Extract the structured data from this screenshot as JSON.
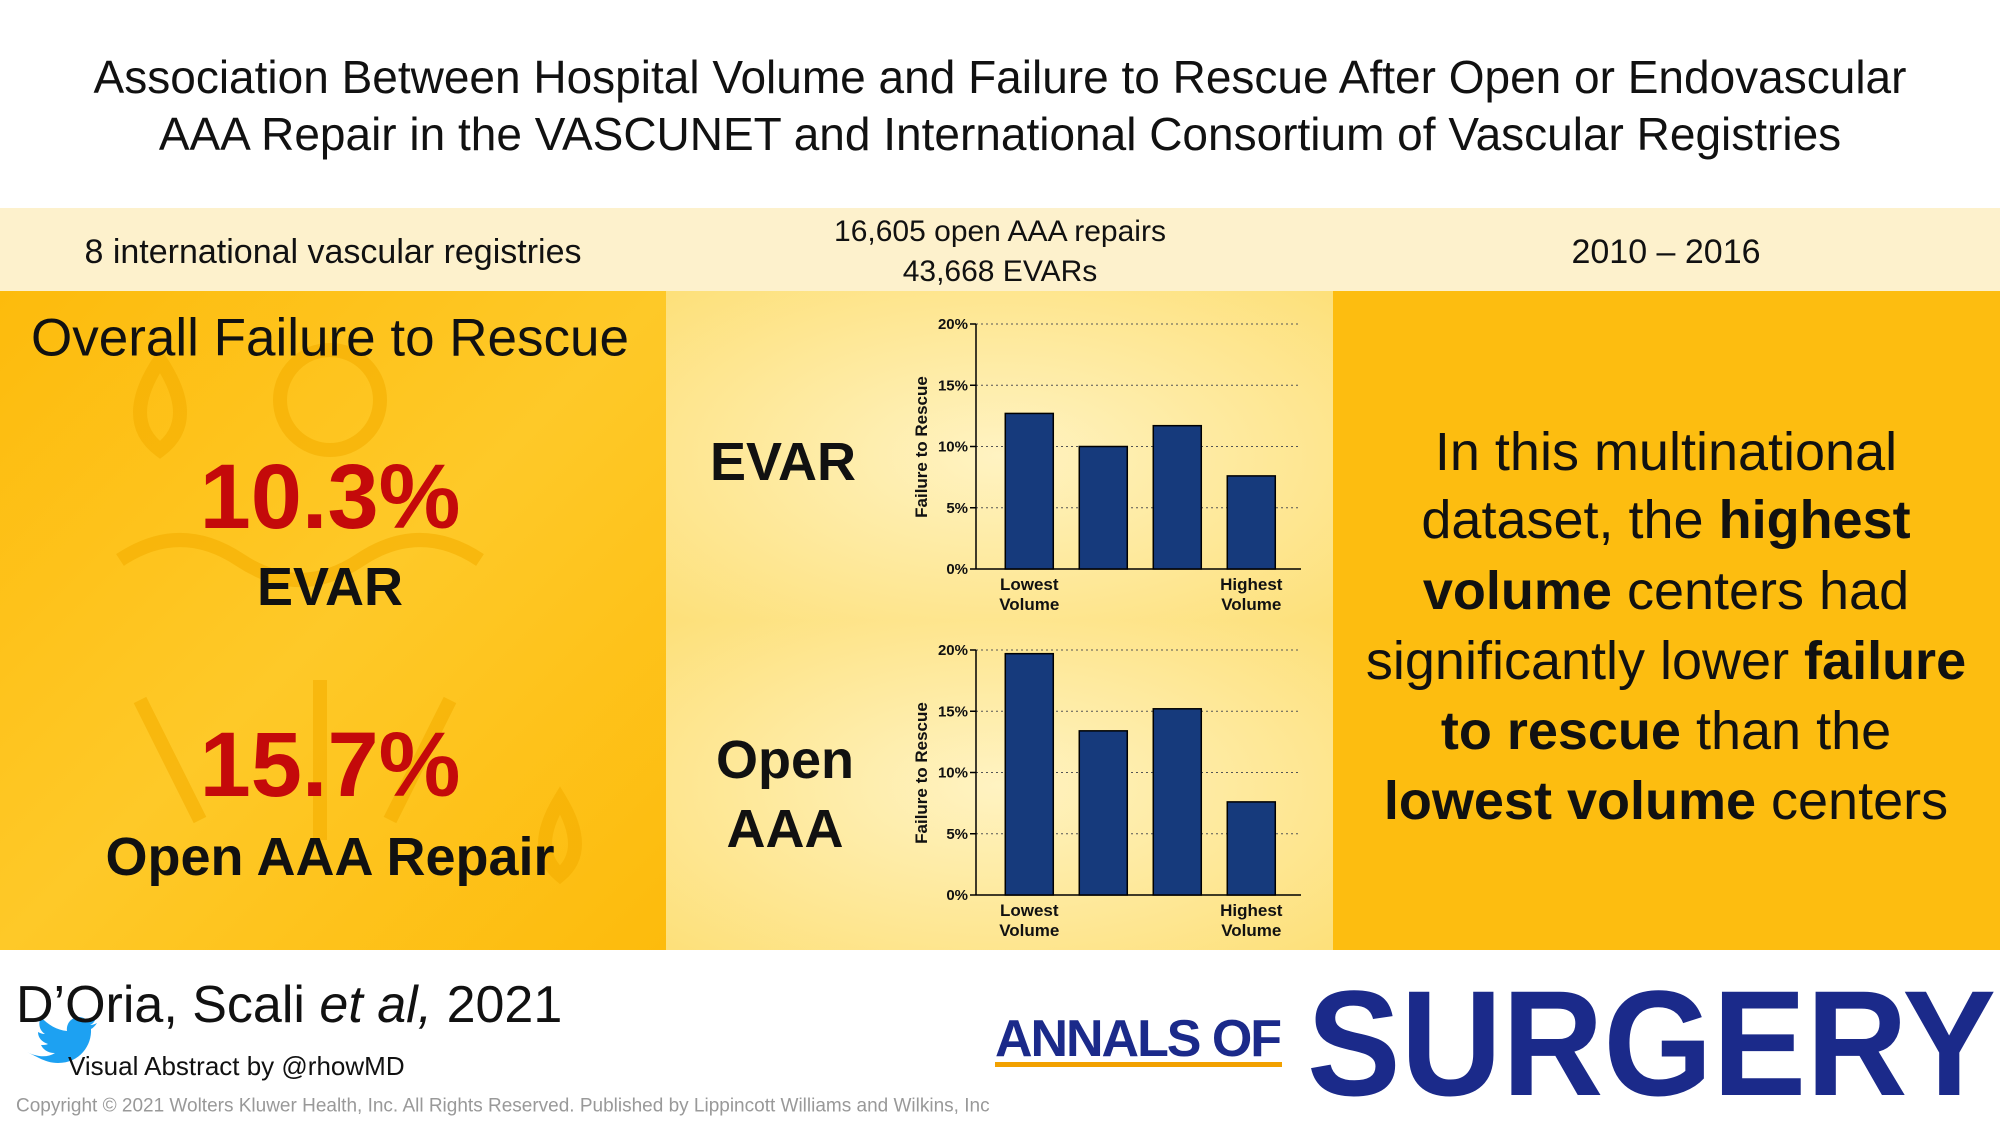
{
  "title_lines": [
    "Association Between Hospital Volume and Failure to Rescue After Open or Endovascular",
    "AAA Repair in the VASCUNET and International Consortium of Vascular Registries"
  ],
  "stats": {
    "registries": "8 international vascular registries",
    "repairs": [
      "16,605 open AAA repairs",
      "43,668 EVARs"
    ],
    "period": "2010 – 2016"
  },
  "overall": {
    "heading": "Overall Failure to Rescue",
    "items": [
      {
        "value": "10.3%",
        "label": "EVAR"
      },
      {
        "value": "15.7%",
        "label": "Open AAA Repair"
      }
    ]
  },
  "chart_labels": [
    [
      "EVAR"
    ],
    [
      "Open",
      "AAA"
    ]
  ],
  "chart_data": [
    {
      "type": "bar",
      "y_label": "Failure to Rescue",
      "categories": [
        "Lowest Volume",
        null,
        null,
        "Highest Volume"
      ],
      "values": [
        12.7,
        10.0,
        11.7,
        7.6
      ],
      "color": "#163a7c",
      "ylim": [
        0,
        20
      ],
      "yticks": [
        {
          "value": 0,
          "label": "0%"
        },
        {
          "value": 5,
          "label": "5%"
        },
        {
          "value": 10,
          "label": "10%"
        },
        {
          "value": 15,
          "label": "15%"
        },
        {
          "value": 20,
          "label": "20%"
        }
      ],
      "grid": true
    },
    {
      "type": "bar",
      "y_label": "Failure to Rescue",
      "categories": [
        "Lowest Volume",
        null,
        null,
        "Highest Volume"
      ],
      "values": [
        19.7,
        13.4,
        15.2,
        7.6
      ],
      "color": "#163a7c",
      "ylim": [
        0,
        20
      ],
      "yticks": [
        {
          "value": 0,
          "label": "0%"
        },
        {
          "value": 5,
          "label": "5%"
        },
        {
          "value": 10,
          "label": "10%"
        },
        {
          "value": 15,
          "label": "15%"
        },
        {
          "value": 20,
          "label": "20%"
        }
      ],
      "grid": true
    }
  ],
  "conclusion": [
    [
      {
        "text": "In this multinational",
        "bold": false
      }
    ],
    [
      {
        "text": "dataset, the ",
        "bold": false
      },
      {
        "text": "highest",
        "bold": true
      }
    ],
    [
      {
        "text": "volume",
        "bold": true
      },
      {
        "text": " centers had",
        "bold": false
      }
    ],
    [
      {
        "text": "significantly lower ",
        "bold": false
      },
      {
        "text": "failure",
        "bold": true
      }
    ],
    [
      {
        "text": "to rescue",
        "bold": true
      },
      {
        "text": " than the",
        "bold": false
      }
    ],
    [
      {
        "text": "lowest volume",
        "bold": true
      },
      {
        "text": " centers",
        "bold": false
      }
    ]
  ],
  "footer": {
    "citation": [
      {
        "text": "D’Oria, Scali ",
        "italic": false
      },
      {
        "text": "et al,",
        "italic": true
      },
      {
        "text": " 2021",
        "italic": false
      }
    ],
    "credit": "Visual Abstract by @rhowMD",
    "copyright": "Copyright © 2021 Wolters Kluwer Health, Inc. All Rights Reserved. Published by Lippincott Williams and Wilkins, Inc",
    "journal": {
      "prefix": "ANNALS OF",
      "name": "SURGERY"
    }
  }
}
